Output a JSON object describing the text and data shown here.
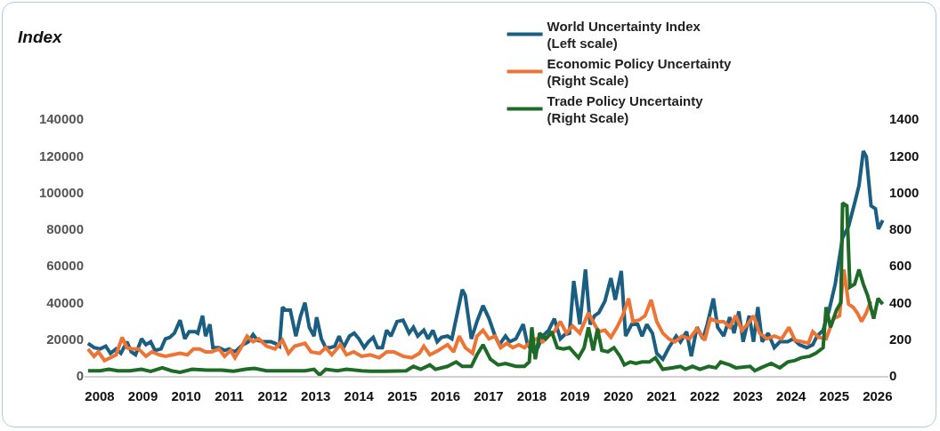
{
  "chart_data": {
    "type": "line",
    "annotations": [
      "Index"
    ],
    "xlim": [
      2007.65,
      2026.25
    ],
    "xticks": [
      2008,
      2009,
      2010,
      2011,
      2012,
      2013,
      2014,
      2015,
      2016,
      2017,
      2018,
      2019,
      2020,
      2021,
      2022,
      2023,
      2024,
      2025,
      2026
    ],
    "ylim": [
      0,
      140000
    ],
    "yticks": [
      0,
      20000,
      40000,
      60000,
      80000,
      100000,
      120000,
      140000
    ],
    "y2lim": [
      0,
      1400
    ],
    "y2ticks": [
      0,
      200,
      400,
      600,
      800,
      1000,
      1200,
      1400
    ],
    "grid": false,
    "legend": "top right",
    "marker": "none",
    "line_style": "solid",
    "series": [
      {
        "name": "World Uncertainty Index\n(Left scale)",
        "color": "#1a5e82",
        "x": [
          2007.73,
          2007.87,
          2008.01,
          2008.14,
          2008.25,
          2008.38,
          2008.49,
          2008.63,
          2008.73,
          2008.83,
          2008.97,
          2009.07,
          2009.18,
          2009.28,
          2009.42,
          2009.52,
          2009.62,
          2009.73,
          2009.86,
          2009.97,
          2010.07,
          2010.21,
          2010.27,
          2010.38,
          2010.45,
          2010.55,
          2010.62,
          2010.76,
          2010.89,
          2011.0,
          2011.1,
          2011.17,
          2011.31,
          2011.44,
          2011.55,
          2011.65,
          2011.79,
          2011.96,
          2012.06,
          2012.16,
          2012.23,
          2012.3,
          2012.41,
          2012.54,
          2012.65,
          2012.75,
          2012.85,
          2012.96,
          2013.02,
          2013.13,
          2013.23,
          2013.33,
          2013.44,
          2013.54,
          2013.64,
          2013.78,
          2013.89,
          2014.0,
          2014.12,
          2014.22,
          2014.33,
          2014.43,
          2014.54,
          2014.64,
          2014.74,
          2014.88,
          2015.02,
          2015.16,
          2015.26,
          2015.36,
          2015.5,
          2015.6,
          2015.71,
          2015.81,
          2015.91,
          2016.05,
          2016.15,
          2016.39,
          2016.46,
          2016.6,
          2016.73,
          2016.87,
          2017.01,
          2017.15,
          2017.25,
          2017.39,
          2017.49,
          2017.63,
          2017.8,
          2017.9,
          2018.04,
          2018.14,
          2018.25,
          2018.39,
          2018.52,
          2018.66,
          2018.76,
          2018.87,
          2018.97,
          2019.11,
          2019.24,
          2019.35,
          2019.45,
          2019.55,
          2019.69,
          2019.83,
          2019.93,
          2020.07,
          2020.17,
          2020.31,
          2020.45,
          2020.55,
          2020.66,
          2020.79,
          2020.89,
          2021.03,
          2021.17,
          2021.34,
          2021.44,
          2021.58,
          2021.69,
          2021.82,
          2021.96,
          2022.06,
          2022.2,
          2022.3,
          2022.44,
          2022.58,
          2022.68,
          2022.79,
          2022.89,
          2023.03,
          2023.13,
          2023.23,
          2023.33,
          2023.47,
          2023.61,
          2023.74,
          2023.92,
          2024.05,
          2024.19,
          2024.36,
          2024.5,
          2024.6,
          2024.74,
          2024.88,
          2025.02,
          2025.19,
          2025.33,
          2025.47,
          2025.57,
          2025.67,
          2025.74,
          2025.85,
          2025.95,
          2026.02,
          2026.12
        ],
        "values": [
          17800,
          15400,
          14700,
          16200,
          12300,
          14700,
          12300,
          18600,
          13100,
          11500,
          20200,
          17000,
          18600,
          13900,
          14700,
          20200,
          21000,
          23300,
          30400,
          20200,
          24100,
          24100,
          23300,
          32800,
          21700,
          28100,
          15400,
          15400,
          13900,
          14700,
          13100,
          13900,
          17000,
          18600,
          22500,
          19400,
          18600,
          18600,
          17800,
          16200,
          37500,
          35900,
          35900,
          21700,
          32800,
          39900,
          26500,
          21700,
          32000,
          20200,
          15400,
          15400,
          16200,
          21700,
          15400,
          21700,
          23300,
          20200,
          15400,
          18600,
          21000,
          15400,
          15400,
          24900,
          21700,
          29600,
          30400,
          23300,
          26500,
          21700,
          24900,
          20200,
          24900,
          18600,
          21000,
          21700,
          20200,
          47000,
          43800,
          20200,
          29600,
          38300,
          31200,
          21700,
          17000,
          21700,
          18600,
          20200,
          28100,
          17000,
          13100,
          15400,
          21700,
          24900,
          31200,
          20200,
          22500,
          23300,
          51700,
          28100,
          58000,
          28100,
          32800,
          34400,
          40700,
          53300,
          41500,
          57200,
          21700,
          28100,
          28100,
          21700,
          28100,
          23300,
          12300,
          9100,
          15400,
          21700,
          18600,
          24100,
          10700,
          26500,
          20200,
          28100,
          42200,
          26500,
          21700,
          32000,
          23300,
          35100,
          18600,
          32800,
          18600,
          37500,
          18600,
          23300,
          15400,
          18600,
          18600,
          20200,
          17000,
          15400,
          17000,
          21700,
          24900,
          35900,
          50100,
          75300,
          81600,
          94200,
          103700,
          122600,
          119500,
          92700,
          91100,
          80100,
          84800
        ]
      },
      {
        "name": "Economic Policy Uncertainty\n(Right Scale)",
        "color": "#ed7434",
        "axis": "y2",
        "x": [
          2007.73,
          2007.87,
          2007.97,
          2008.11,
          2008.25,
          2008.38,
          2008.52,
          2008.63,
          2008.76,
          2008.9,
          2009.07,
          2009.21,
          2009.38,
          2009.52,
          2009.69,
          2009.86,
          2010.03,
          2010.17,
          2010.31,
          2010.45,
          2010.59,
          2010.76,
          2010.89,
          2011.03,
          2011.13,
          2011.27,
          2011.41,
          2011.55,
          2011.68,
          2011.86,
          2012.06,
          2012.23,
          2012.37,
          2012.51,
          2012.75,
          2012.89,
          2013.09,
          2013.23,
          2013.37,
          2013.57,
          2013.71,
          2013.88,
          2014.06,
          2014.26,
          2014.47,
          2014.64,
          2014.81,
          2015.02,
          2015.22,
          2015.4,
          2015.5,
          2015.64,
          2015.84,
          2016.05,
          2016.19,
          2016.32,
          2016.46,
          2016.63,
          2016.73,
          2016.87,
          2017.01,
          2017.15,
          2017.28,
          2017.42,
          2017.56,
          2017.7,
          2017.83,
          2017.97,
          2018.11,
          2018.25,
          2018.39,
          2018.52,
          2018.66,
          2018.8,
          2018.94,
          2019.11,
          2019.31,
          2019.45,
          2019.55,
          2019.69,
          2019.83,
          2019.97,
          2020.1,
          2020.24,
          2020.34,
          2020.48,
          2020.62,
          2020.76,
          2020.89,
          2021.03,
          2021.17,
          2021.31,
          2021.48,
          2021.65,
          2021.82,
          2022.0,
          2022.13,
          2022.3,
          2022.44,
          2022.58,
          2022.72,
          2022.86,
          2022.99,
          2023.13,
          2023.27,
          2023.44,
          2023.61,
          2023.78,
          2023.95,
          2024.09,
          2024.26,
          2024.4,
          2024.5,
          2024.64,
          2024.81,
          2024.98,
          2025.12,
          2025.22,
          2025.33,
          2025.43,
          2025.53,
          2025.63,
          2025.74,
          2025.84
        ],
        "values": [
          147,
          107,
          131,
          84,
          99,
          115,
          210,
          154,
          147,
          147,
          107,
          131,
          115,
          107,
          115,
          123,
          115,
          147,
          147,
          131,
          131,
          147,
          107,
          139,
          99,
          154,
          217,
          186,
          202,
          162,
          147,
          194,
          123,
          162,
          178,
          131,
          123,
          154,
          115,
          170,
          115,
          131,
          107,
          115,
          99,
          131,
          131,
          107,
          99,
          123,
          162,
          115,
          139,
          170,
          131,
          217,
          154,
          123,
          217,
          249,
          202,
          217,
          154,
          178,
          154,
          170,
          154,
          186,
          202,
          186,
          217,
          241,
          296,
          233,
          273,
          233,
          344,
          281,
          241,
          249,
          210,
          265,
          328,
          422,
          296,
          304,
          328,
          414,
          296,
          233,
          202,
          186,
          217,
          202,
          257,
          194,
          312,
          296,
          296,
          265,
          328,
          249,
          281,
          328,
          233,
          202,
          217,
          202,
          265,
          194,
          186,
          178,
          241,
          210,
          202,
          312,
          328,
          580,
          391,
          375,
          344,
          296,
          344,
          407
        ]
      },
      {
        "name": "Trade Policy Uncertainty\n(Right Scale)",
        "color": "#1e6b28",
        "axis": "y2",
        "x": [
          2007.73,
          2008.01,
          2008.21,
          2008.42,
          2008.7,
          2008.97,
          2009.18,
          2009.45,
          2009.66,
          2009.86,
          2010.14,
          2010.48,
          2010.83,
          2011.1,
          2011.37,
          2011.58,
          2011.86,
          2012.13,
          2012.4,
          2012.75,
          2012.96,
          2013.09,
          2013.23,
          2013.5,
          2013.71,
          2014.06,
          2014.26,
          2014.61,
          2015.09,
          2015.26,
          2015.43,
          2015.64,
          2015.77,
          2016.05,
          2016.25,
          2016.39,
          2016.6,
          2016.73,
          2016.87,
          2017.04,
          2017.22,
          2017.39,
          2017.63,
          2017.83,
          2017.94,
          2018.0,
          2018.08,
          2018.18,
          2018.32,
          2018.46,
          2018.59,
          2018.73,
          2018.87,
          2019.08,
          2019.21,
          2019.31,
          2019.42,
          2019.52,
          2019.62,
          2019.76,
          2019.9,
          2020.04,
          2020.14,
          2020.28,
          2020.41,
          2020.55,
          2020.72,
          2020.86,
          2021.03,
          2021.24,
          2021.44,
          2021.55,
          2021.72,
          2021.89,
          2022.09,
          2022.26,
          2022.37,
          2022.58,
          2022.72,
          2023.05,
          2023.16,
          2023.3,
          2023.54,
          2023.74,
          2023.92,
          2024.09,
          2024.23,
          2024.43,
          2024.57,
          2024.74,
          2024.81,
          2024.91,
          2025.05,
          2025.15,
          2025.19,
          2025.29,
          2025.36,
          2025.47,
          2025.57,
          2025.67,
          2025.77,
          2025.91,
          2026.01,
          2026.12
        ],
        "values": [
          28,
          28,
          36,
          28,
          28,
          36,
          25,
          44,
          28,
          20,
          36,
          32,
          32,
          25,
          36,
          41,
          28,
          28,
          28,
          28,
          36,
          5,
          36,
          28,
          36,
          28,
          25,
          25,
          28,
          52,
          36,
          60,
          36,
          52,
          76,
          52,
          52,
          115,
          170,
          91,
          60,
          68,
          52,
          52,
          76,
          265,
          91,
          233,
          202,
          241,
          154,
          147,
          154,
          99,
          154,
          265,
          139,
          257,
          139,
          131,
          154,
          107,
          60,
          76,
          68,
          76,
          76,
          99,
          36,
          44,
          52,
          36,
          52,
          36,
          52,
          44,
          76,
          60,
          44,
          52,
          28,
          44,
          68,
          44,
          76,
          84,
          99,
          107,
          123,
          154,
          375,
          265,
          359,
          400,
          942,
          927,
          485,
          501,
          580,
          501,
          438,
          312,
          422,
          391
        ]
      }
    ]
  }
}
